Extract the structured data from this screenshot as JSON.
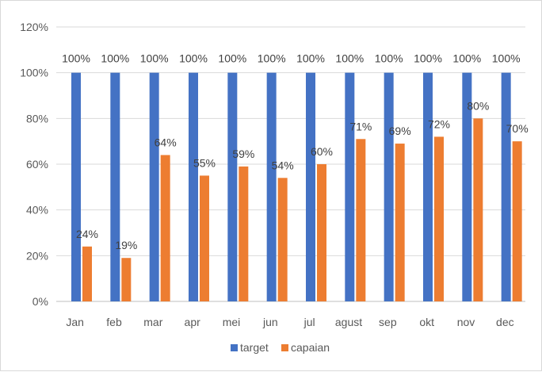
{
  "chart_data": {
    "type": "bar",
    "categories": [
      "Jan",
      "feb",
      "mar",
      "apr",
      "mei",
      "jun",
      "jul",
      "agust",
      "sep",
      "okt",
      "nov",
      "dec"
    ],
    "series": [
      {
        "name": "target",
        "color": "#4472c4",
        "values": [
          100,
          100,
          100,
          100,
          100,
          100,
          100,
          100,
          100,
          100,
          100,
          100
        ],
        "labels": [
          "100%",
          "100%",
          "100%",
          "100%",
          "100%",
          "100%",
          "100%",
          "100%",
          "100%",
          "100%",
          "100%",
          "100%"
        ]
      },
      {
        "name": "capaian",
        "color": "#ed7d31",
        "values": [
          24,
          19,
          64,
          55,
          59,
          54,
          60,
          71,
          69,
          72,
          80,
          70
        ],
        "labels": [
          "24%",
          "19%",
          "64%",
          "55%",
          "59%",
          "54%",
          "60%",
          "71%",
          "69%",
          "72%",
          "80%",
          "70%"
        ]
      }
    ],
    "y_ticks": [
      "0%",
      "20%",
      "40%",
      "60%",
      "80%",
      "100%",
      "120%"
    ],
    "ylim": [
      0,
      120
    ],
    "grid": true,
    "legend_position": "bottom"
  }
}
